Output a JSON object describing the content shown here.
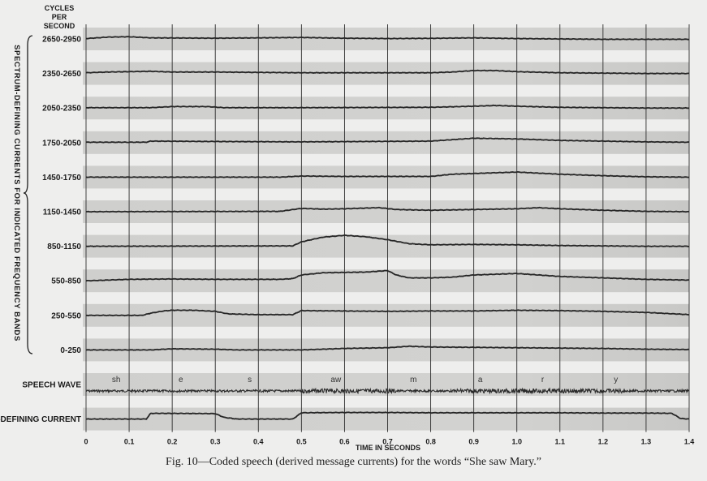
{
  "figure": {
    "caption": "Fig. 10—Coded speech (derived message currents) for the words “She saw Mary.”"
  },
  "chart_data": {
    "type": "line",
    "units_label": [
      "CYCLES",
      "PER",
      "SECOND"
    ],
    "side_label": "SPECTRUM-DEFINING CURRENTS FOR INDICATED FREQUENCY BANDS",
    "xlabel": "TIME IN SECONDS",
    "xlim": [
      0,
      1.4
    ],
    "x_ticks": [
      "0",
      "0.1",
      "0.2",
      "0.3",
      "0.4",
      "0.5",
      "0.6",
      "0.7",
      "0.8",
      "0.9",
      "1.0",
      "1.1",
      "1.2",
      "1.3",
      "1.4"
    ],
    "grid": true,
    "series": [
      {
        "name": "2650-2950",
        "x": [
          0,
          0.05,
          0.1,
          0.15,
          0.3,
          0.5,
          0.6,
          0.7,
          0.8,
          0.9,
          1.0,
          1.1,
          1.2,
          1.3,
          1.4
        ],
        "y": [
          0.05,
          0.25,
          0.3,
          0.15,
          0.1,
          0.2,
          0.1,
          0.05,
          0.08,
          0.15,
          0.05,
          0.0,
          -0.05,
          -0.05,
          -0.05
        ]
      },
      {
        "name": "2350-2650",
        "x": [
          0,
          0.05,
          0.1,
          0.15,
          0.2,
          0.3,
          0.5,
          0.6,
          0.8,
          0.85,
          0.9,
          0.95,
          1.0,
          1.1,
          1.2,
          1.3,
          1.4
        ],
        "y": [
          0.1,
          0.2,
          0.25,
          0.3,
          0.2,
          0.2,
          0.1,
          0.1,
          0.1,
          0.2,
          0.4,
          0.4,
          0.25,
          0.1,
          0.05,
          0.0,
          0.0
        ]
      },
      {
        "name": "2050-2350",
        "x": [
          0,
          0.15,
          0.2,
          0.28,
          0.32,
          0.5,
          0.8,
          0.9,
          0.95,
          1.0,
          1.1,
          1.2,
          1.3,
          1.4
        ],
        "y": [
          0.05,
          0.05,
          0.2,
          0.2,
          0.05,
          0.05,
          0.1,
          0.25,
          0.35,
          0.25,
          0.1,
          0.05,
          0.0,
          0.0
        ]
      },
      {
        "name": "1750-2050",
        "x": [
          0,
          0.14,
          0.15,
          0.3,
          0.5,
          0.8,
          0.85,
          0.9,
          0.95,
          1.0,
          1.05,
          1.1,
          1.2,
          1.3,
          1.4
        ],
        "y": [
          0.05,
          0.05,
          0.2,
          0.15,
          0.1,
          0.2,
          0.4,
          0.6,
          0.55,
          0.5,
          0.4,
          0.3,
          0.2,
          0.1,
          0.05
        ]
      },
      {
        "name": "1450-1750",
        "x": [
          0,
          0.45,
          0.5,
          0.6,
          0.8,
          0.85,
          0.9,
          0.95,
          1.0,
          1.05,
          1.1,
          1.2,
          1.3,
          1.4
        ],
        "y": [
          0.0,
          0.0,
          0.15,
          0.1,
          0.1,
          0.4,
          0.5,
          0.6,
          0.7,
          0.55,
          0.4,
          0.2,
          0.05,
          0.0
        ]
      },
      {
        "name": "1150-1450",
        "x": [
          0,
          0.45,
          0.5,
          0.55,
          0.6,
          0.65,
          0.68,
          0.72,
          0.8,
          0.9,
          1.0,
          1.05,
          1.1,
          1.2,
          1.3,
          1.4
        ],
        "y": [
          0.0,
          0.05,
          0.45,
          0.35,
          0.4,
          0.5,
          0.55,
          0.3,
          0.2,
          0.3,
          0.4,
          0.55,
          0.4,
          0.2,
          0.05,
          0.0
        ]
      },
      {
        "name": "850-1150",
        "x": [
          0,
          0.48,
          0.5,
          0.55,
          0.6,
          0.65,
          0.7,
          0.75,
          0.8,
          0.9,
          1.0,
          1.1,
          1.2,
          1.3,
          1.4
        ],
        "y": [
          0.0,
          0.05,
          0.6,
          1.25,
          1.5,
          1.3,
          0.9,
          0.35,
          0.2,
          0.25,
          0.2,
          0.1,
          0.05,
          0.0,
          0.0
        ]
      },
      {
        "name": "550-850",
        "x": [
          0,
          0.1,
          0.2,
          0.3,
          0.45,
          0.48,
          0.5,
          0.55,
          0.6,
          0.65,
          0.7,
          0.72,
          0.75,
          0.8,
          0.85,
          0.9,
          1.0,
          1.05,
          1.1,
          1.2,
          1.3,
          1.4
        ],
        "y": [
          0.0,
          0.2,
          0.25,
          0.2,
          0.2,
          0.3,
          0.8,
          1.1,
          1.15,
          1.2,
          1.4,
          0.8,
          0.4,
          0.4,
          0.5,
          0.8,
          1.0,
          0.8,
          0.6,
          0.4,
          0.2,
          0.1
        ]
      },
      {
        "name": "250-550",
        "x": [
          0,
          0.13,
          0.15,
          0.18,
          0.2,
          0.25,
          0.3,
          0.33,
          0.4,
          0.48,
          0.5,
          0.6,
          0.7,
          0.8,
          0.9,
          1.0,
          1.1,
          1.2,
          1.3,
          1.4
        ],
        "y": [
          0.0,
          0.0,
          0.3,
          0.6,
          0.7,
          0.7,
          0.55,
          0.2,
          0.1,
          0.1,
          0.65,
          0.6,
          0.55,
          0.6,
          0.6,
          0.7,
          0.65,
          0.55,
          0.4,
          0.1
        ]
      },
      {
        "name": "0-250",
        "x": [
          0,
          0.15,
          0.2,
          0.3,
          0.35,
          0.5,
          0.6,
          0.7,
          0.75,
          0.8,
          0.9,
          1.0,
          1.1,
          1.2,
          1.3,
          1.4
        ],
        "y": [
          0.0,
          0.0,
          0.15,
          0.1,
          0.0,
          0.0,
          0.2,
          0.3,
          0.5,
          0.4,
          0.35,
          0.3,
          0.25,
          0.2,
          0.1,
          0.05
        ]
      }
    ],
    "speech_wave": {
      "name": "SPEECH WAVE",
      "phonemes": [
        {
          "label": "sh",
          "t": 0.07
        },
        {
          "label": "e",
          "t": 0.22
        },
        {
          "label": "s",
          "t": 0.38
        },
        {
          "label": "aw",
          "t": 0.58
        },
        {
          "label": "m",
          "t": 0.76
        },
        {
          "label": "a",
          "t": 0.915
        },
        {
          "label": "r",
          "t": 1.06
        },
        {
          "label": "y",
          "t": 1.23
        }
      ]
    },
    "pitch_current": {
      "name": "PITCH-DEFINING CURRENT",
      "x": [
        0,
        0.14,
        0.15,
        0.2,
        0.3,
        0.32,
        0.35,
        0.48,
        0.5,
        0.6,
        0.7,
        0.8,
        0.9,
        1.0,
        1.1,
        1.2,
        1.3,
        1.36,
        1.38,
        1.4
      ],
      "y": [
        0.0,
        0.0,
        1.0,
        1.0,
        0.95,
        0.3,
        0.0,
        0.0,
        1.1,
        1.15,
        1.15,
        1.1,
        1.1,
        1.1,
        1.1,
        1.05,
        1.05,
        1.0,
        0.1,
        0.0
      ]
    }
  }
}
